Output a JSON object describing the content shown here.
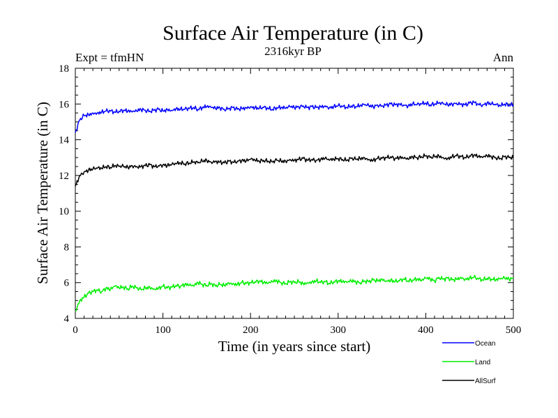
{
  "chart_data": {
    "type": "line",
    "title": "Surface Air Temperature (in C)",
    "subtitle": "2316kyr BP",
    "annotation_left": "Expt = tfmHN",
    "annotation_right": "Ann",
    "xlabel": "Time (in years since start)",
    "ylabel": "Surface Air Temperature (in C)",
    "xlim": [
      0,
      500
    ],
    "ylim": [
      4,
      18
    ],
    "xticks": [
      0,
      100,
      200,
      300,
      400,
      500
    ],
    "yticks": [
      4,
      6,
      8,
      10,
      12,
      14,
      16,
      18
    ],
    "x_start": 0,
    "x_step": 5,
    "legend_position": "bottom-right",
    "series": [
      {
        "name": "Ocean",
        "color": "#0000ff",
        "values": [
          14.4,
          15.1,
          15.35,
          15.4,
          15.5,
          15.5,
          15.55,
          15.6,
          15.6,
          15.55,
          15.6,
          15.65,
          15.6,
          15.55,
          15.6,
          15.7,
          15.65,
          15.6,
          15.65,
          15.7,
          15.6,
          15.7,
          15.65,
          15.75,
          15.7,
          15.7,
          15.75,
          15.8,
          15.7,
          15.8,
          15.85,
          15.8,
          15.75,
          15.8,
          15.7,
          15.75,
          15.8,
          15.7,
          15.75,
          15.8,
          15.85,
          15.8,
          15.75,
          15.8,
          15.75,
          15.7,
          15.8,
          15.8,
          15.75,
          15.85,
          15.8,
          15.85,
          15.9,
          15.8,
          15.85,
          15.8,
          15.85,
          15.9,
          15.8,
          15.85,
          15.9,
          15.85,
          15.8,
          15.9,
          15.85,
          15.9,
          15.95,
          15.9,
          15.85,
          15.95,
          15.9,
          15.95,
          16.0,
          15.95,
          16.0,
          15.95,
          15.9,
          16.0,
          15.95,
          16.0,
          16.05,
          15.95,
          16.0,
          16.05,
          16.0,
          15.95,
          16.0,
          16.05,
          16.0,
          15.95,
          16.05,
          16.1,
          16.0,
          15.95,
          16.05,
          16.0,
          15.95,
          15.9,
          16.0,
          15.95,
          15.95
        ]
      },
      {
        "name": "Land",
        "color": "#00ee00",
        "values": [
          4.4,
          5.0,
          5.2,
          5.4,
          5.5,
          5.6,
          5.5,
          5.7,
          5.6,
          5.8,
          5.7,
          5.75,
          5.65,
          5.8,
          5.7,
          5.6,
          5.7,
          5.75,
          5.65,
          5.7,
          5.8,
          5.7,
          5.75,
          5.85,
          5.8,
          5.9,
          5.85,
          5.8,
          6.0,
          5.9,
          5.85,
          5.95,
          5.8,
          5.9,
          5.85,
          6.0,
          5.95,
          5.9,
          6.0,
          5.95,
          6.0,
          6.05,
          6.1,
          6.0,
          5.95,
          6.05,
          6.1,
          6.0,
          5.95,
          6.05,
          6.0,
          6.05,
          5.95,
          6.0,
          6.05,
          6.1,
          6.0,
          6.05,
          5.95,
          6.05,
          6.1,
          6.05,
          6.0,
          6.1,
          6.05,
          6.0,
          6.1,
          6.05,
          6.15,
          6.1,
          6.2,
          6.1,
          6.15,
          6.05,
          6.1,
          6.2,
          6.1,
          6.15,
          6.2,
          6.1,
          6.25,
          6.2,
          6.1,
          6.3,
          6.2,
          6.25,
          6.15,
          6.2,
          6.3,
          6.2,
          6.25,
          6.3,
          6.2,
          6.15,
          6.25,
          6.2,
          6.15,
          6.2,
          6.25,
          6.2,
          6.25
        ]
      },
      {
        "name": "AllSurf",
        "color": "#000000",
        "values": [
          11.4,
          12.0,
          12.2,
          12.3,
          12.35,
          12.4,
          12.4,
          12.5,
          12.45,
          12.55,
          12.5,
          12.5,
          12.45,
          12.55,
          12.5,
          12.5,
          12.55,
          12.6,
          12.5,
          12.55,
          12.6,
          12.55,
          12.6,
          12.65,
          12.7,
          12.65,
          12.7,
          12.75,
          12.7,
          12.8,
          12.85,
          12.75,
          12.8,
          12.75,
          12.7,
          12.8,
          12.75,
          12.8,
          12.85,
          12.8,
          12.9,
          12.85,
          12.8,
          12.85,
          12.8,
          12.75,
          12.85,
          12.8,
          12.8,
          12.9,
          12.85,
          12.9,
          12.95,
          12.85,
          12.9,
          12.85,
          12.9,
          12.95,
          12.85,
          12.9,
          12.95,
          12.9,
          12.85,
          12.95,
          12.9,
          12.95,
          13.0,
          12.9,
          12.85,
          12.95,
          12.95,
          13.0,
          13.05,
          12.95,
          13.0,
          12.95,
          12.9,
          13.05,
          13.0,
          13.05,
          13.1,
          13.0,
          13.05,
          13.1,
          13.0,
          12.95,
          13.05,
          13.1,
          13.05,
          13.0,
          13.1,
          13.15,
          13.05,
          13.0,
          13.1,
          13.05,
          13.0,
          12.95,
          13.05,
          13.0,
          13.0
        ]
      }
    ]
  }
}
